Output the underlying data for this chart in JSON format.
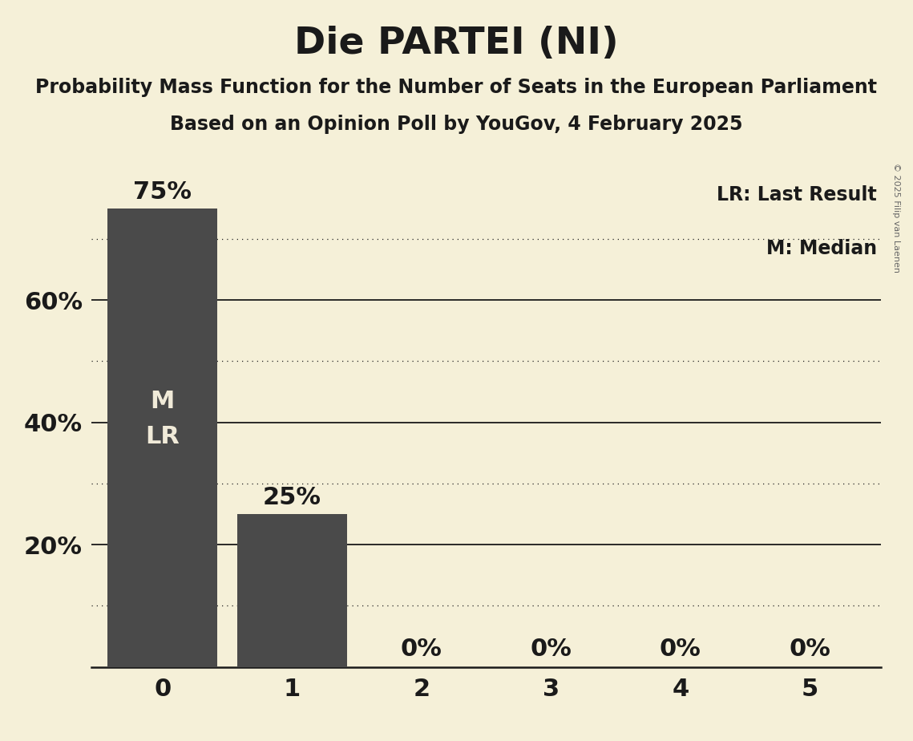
{
  "title": "Die PARTEI (NI)",
  "subtitle1": "Probability Mass Function for the Number of Seats in the European Parliament",
  "subtitle2": "Based on an Opinion Poll by YouGov, 4 February 2025",
  "copyright": "© 2025 Filip van Laenen",
  "categories": [
    0,
    1,
    2,
    3,
    4,
    5
  ],
  "values": [
    0.75,
    0.25,
    0.0,
    0.0,
    0.0,
    0.0
  ],
  "bar_color": "#4a4a4a",
  "background_color": "#f5f0d8",
  "label_color": "#1a1a1a",
  "bar_label_color_inside": "#f0ead8",
  "bar_label_color_outside": "#1a1a1a",
  "ylim": [
    0,
    0.8
  ],
  "yticks": [
    0.2,
    0.4,
    0.6
  ],
  "ytick_labels": [
    "20%",
    "40%",
    "60%"
  ],
  "solid_gridlines": [
    0.2,
    0.4,
    0.6
  ],
  "dotted_gridlines": [
    0.1,
    0.3,
    0.5,
    0.7
  ],
  "legend_text1": "LR: Last Result",
  "legend_text2": "M: Median",
  "median_bar": 0,
  "last_result_bar": 0,
  "title_fontsize": 34,
  "subtitle_fontsize": 17,
  "axis_tick_fontsize": 22,
  "bar_label_fontsize": 22,
  "inside_label_fontsize": 22,
  "legend_fontsize": 17,
  "copyright_fontsize": 8
}
